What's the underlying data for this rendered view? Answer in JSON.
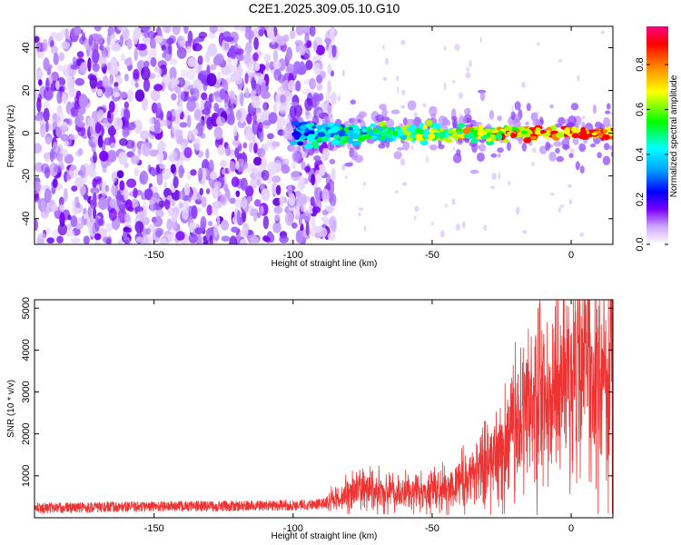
{
  "title": "C2E1.2025.309.05.10.G10",
  "chart_data": [
    {
      "type": "heatmap",
      "name": "spectrogram",
      "xlabel": "Height of straight line (km)",
      "ylabel": "Frequency (Hz)",
      "xlim": [
        -193,
        15
      ],
      "ylim": [
        -52,
        50
      ],
      "xticks": [
        -150,
        -100,
        -50,
        0
      ],
      "yticks": [
        -40,
        -20,
        0,
        20,
        40
      ],
      "ridge": {
        "center_frequency_hz": 0,
        "start_km": -100,
        "end_km": 15,
        "note": "strong narrow signal near 0 Hz from -100 km to top"
      },
      "noise_region_km": [
        -193,
        -85
      ],
      "colorbar": {
        "label": "Normalized spectral amplitude",
        "range": [
          0.0,
          0.97
        ],
        "ticks": [
          "0.0",
          "0.2",
          "0.4",
          "0.6",
          "0.8"
        ],
        "colors": [
          "#ffffff",
          "#7a00ff",
          "#0000ff",
          "#00ffff",
          "#00ff00",
          "#ffff00",
          "#ff0000",
          "#ff0080"
        ]
      }
    },
    {
      "type": "line",
      "name": "snr",
      "xlabel": "Height of straight line (km)",
      "ylabel": "SNR (10 * v/v)",
      "xlim": [
        -193,
        15
      ],
      "ylim": [
        0,
        5200
      ],
      "xticks": [
        -150,
        -100,
        -50,
        0
      ],
      "yticks": [
        1000,
        2000,
        3000,
        4000,
        5000
      ],
      "color": "#ee3333",
      "series": [
        {
          "name": "SNR envelope",
          "x": [
            -193,
            -170,
            -150,
            -120,
            -100,
            -90,
            -85,
            -80,
            -75,
            -70,
            -65,
            -60,
            -55,
            -50,
            -45,
            -40,
            -35,
            -30,
            -25,
            -20,
            -15,
            -10,
            -5,
            0,
            5,
            10,
            15
          ],
          "y": [
            230,
            250,
            270,
            280,
            300,
            330,
            420,
            600,
            700,
            650,
            600,
            560,
            580,
            640,
            720,
            820,
            1000,
            1350,
            1700,
            2200,
            2700,
            2900,
            3100,
            3300,
            3500,
            3600,
            3750
          ]
        }
      ]
    }
  ]
}
